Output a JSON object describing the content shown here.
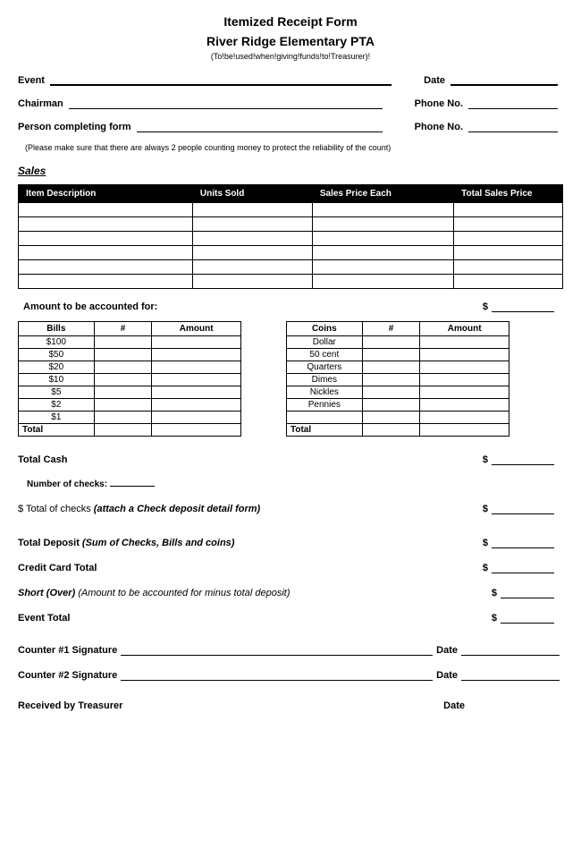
{
  "header": {
    "title": "Itemized Receipt Form",
    "org": "River Ridge Elementary PTA",
    "instruction": "(To!be!used!when!giving!funds!to!Treasurer)!"
  },
  "fields": {
    "event": "Event",
    "date": "Date",
    "chairman": "Chairman",
    "phone1": "Phone No.",
    "person": "Person completing form",
    "phone2": "Phone No."
  },
  "note": "(Please make sure that there are always 2 people counting money to protect the reliability of the count)",
  "sales": {
    "heading": "Sales",
    "columns": [
      "Item Description",
      "Units Sold",
      "Sales Price Each",
      "Total Sales Price"
    ],
    "row_count": 6
  },
  "amount_label": "Amount to be accounted for:",
  "bills_table": {
    "columns": [
      "Bills",
      "#",
      "Amount"
    ],
    "denoms": [
      "$100",
      "$50",
      "$20",
      "$10",
      "$5",
      "$2",
      "$1"
    ],
    "total_label": "Total"
  },
  "coins_table": {
    "columns": [
      "Coins",
      "#",
      "Amount"
    ],
    "denoms": [
      "Dollar",
      "50 cent",
      "Quarters",
      "Dimes",
      "Nickles",
      "Pennies",
      ""
    ],
    "total_label": "Total"
  },
  "totals": {
    "total_cash": "Total Cash",
    "num_checks": "Number of checks:",
    "total_checks_prefix": "$ Total of checks ",
    "total_checks_note": "(attach a Check deposit detail form)",
    "total_deposit": "Total Deposit ",
    "total_deposit_note": "(Sum of Checks, Bills and coins)",
    "cc_total": "Credit Card Total",
    "short_over": "Short (Over) ",
    "short_over_note": "(Amount to be accounted for minus total deposit)",
    "event_total": "Event Total"
  },
  "signatures": {
    "c1": "Counter #1 Signature",
    "c2": "Counter #2 Signature",
    "date": "Date",
    "treasurer": "Received by Treasurer"
  },
  "dollar": "$"
}
